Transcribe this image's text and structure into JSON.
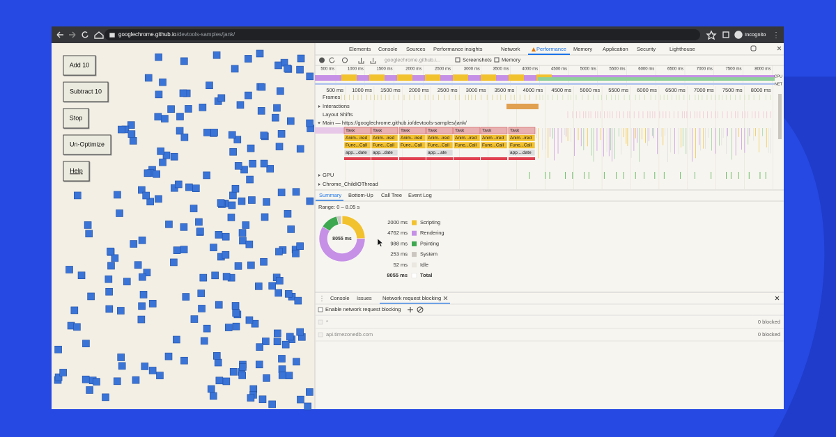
{
  "browser": {
    "host": "googlechrome.github.io",
    "path": "/devtools-samples/jank/",
    "profile": "Incognito"
  },
  "page": {
    "buttons": [
      "Add 10",
      "Subtract 10",
      "Stop",
      "Un-Optimize",
      "Help"
    ]
  },
  "devtools": {
    "tabs": [
      "Elements",
      "Console",
      "Sources",
      "Performance insights",
      "Network",
      "Performance",
      "Memory",
      "Application",
      "Security",
      "Lighthouse"
    ],
    "toolbar": {
      "recording": "googlechrome.github.i...",
      "checkboxes": [
        "Screenshots",
        "Memory"
      ]
    },
    "ruler": [
      "500 ms",
      "1000 ms",
      "1500 ms",
      "2000 ms",
      "2500 ms",
      "3000 ms",
      "3500 ms",
      "4000 ms",
      "4500 ms",
      "5000 ms",
      "5500 ms",
      "6000 ms",
      "6500 ms",
      "7000 ms",
      "7500 ms",
      "8000 ms"
    ],
    "overview_labels": [
      "CPU",
      "NET"
    ],
    "tracks": [
      "Frames",
      "Interactions",
      "Layout Shifts",
      "Main — https://googlechrome.github.io/devtools-samples/jank/",
      "GPU",
      "Chrome_ChildIOThread"
    ],
    "flame": [
      [
        "Task",
        "Anim...ired",
        "Func...Call",
        "app....date"
      ],
      [
        "Task",
        "Anim...ired",
        "Func...Call",
        "app...date"
      ],
      [
        "Task",
        "Anim...ired",
        "Func...Call"
      ],
      [
        "Task",
        "Anim...ired",
        "Func...Call",
        "app....ate"
      ],
      [
        "Task",
        "Anim...ired",
        "Func...Call"
      ],
      [
        "Task",
        "Anim...ired",
        "Func...Call"
      ],
      [
        "Task",
        "Anim...ired",
        "Func...Call",
        "app....date"
      ]
    ],
    "bottom_tabs": [
      "Summary",
      "Bottom-Up",
      "Call Tree",
      "Event Log"
    ],
    "summary": {
      "range": "Range: 0 – 8.05 s",
      "values": [
        2000,
        4762,
        988,
        253,
        52
      ],
      "value_labels": [
        "2000 ms",
        "4762 ms",
        "988 ms",
        "253 ms",
        "52 ms"
      ],
      "labels": [
        "Scripting",
        "Rendering",
        "Painting",
        "System",
        "Idle"
      ],
      "colors": [
        "#f2c12e",
        "#c590e6",
        "#3ea851",
        "#cbc7c0",
        "#ebe8e2"
      ],
      "total": 8055,
      "total_label": "8055 ms",
      "total_name": "Total"
    },
    "drawer": {
      "tabs": [
        "Console",
        "Issues",
        "Network request blocking"
      ],
      "checkbox": "Enable network request blocking",
      "rows": [
        {
          "pattern": "*",
          "status": "0 blocked"
        },
        {
          "pattern": "api.timezonedb.com",
          "status": "0 blocked"
        }
      ]
    }
  }
}
